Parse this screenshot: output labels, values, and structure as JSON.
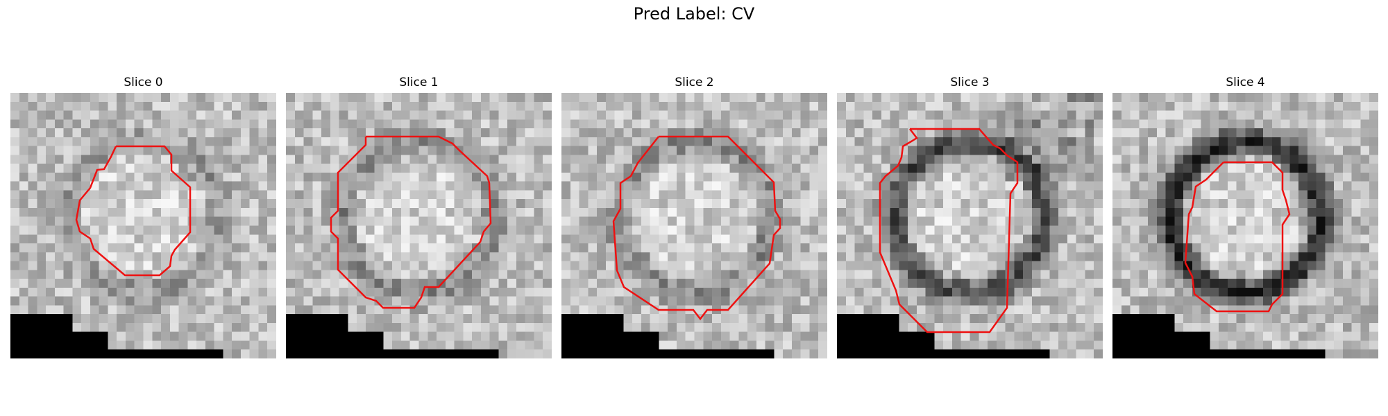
{
  "figure": {
    "suptitle": "Pred Label: CV",
    "panels": [
      {
        "title": "Slice 0",
        "contour_color": "#ee1111",
        "ring_darkness": 0.15
      },
      {
        "title": "Slice 1",
        "contour_color": "#ee1111",
        "ring_darkness": 0.2
      },
      {
        "title": "Slice 2",
        "contour_color": "#ee1111",
        "ring_darkness": 0.2
      },
      {
        "title": "Slice 3",
        "contour_color": "#ee1111",
        "ring_darkness": 0.45
      },
      {
        "title": "Slice 4",
        "contour_color": "#ee1111",
        "ring_darkness": 0.6
      }
    ]
  }
}
